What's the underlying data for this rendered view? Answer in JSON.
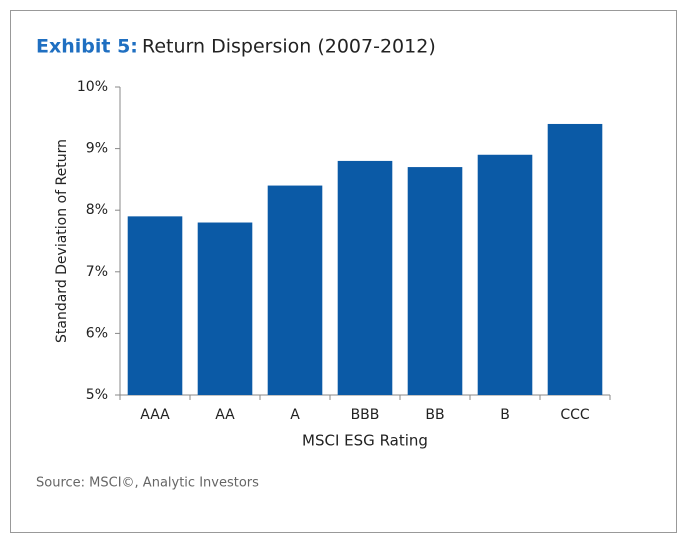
{
  "chart_data": {
    "type": "bar",
    "title_label": "Exhibit 5:",
    "title": "Return Dispersion (2007-2012)",
    "x_label": "MSCI ESG Rating",
    "y_label": "Standard Deviation of Return",
    "source": "Source: MSCI©, Analytic Investors",
    "categories": [
      "AAA",
      "AA",
      "A",
      "BBB",
      "BB",
      "B",
      "CCC"
    ],
    "values": [
      7.9,
      7.8,
      8.4,
      8.8,
      8.7,
      8.9,
      9.4
    ],
    "color": "#0b5aa6",
    "ylim": [
      5,
      10
    ],
    "yticks": [
      {
        "value": 5,
        "label": "5%"
      },
      {
        "value": 6,
        "label": "6%"
      },
      {
        "value": 7,
        "label": "7%"
      },
      {
        "value": 8,
        "label": "8%"
      },
      {
        "value": 9,
        "label": "9%"
      },
      {
        "value": 10,
        "label": "10%"
      }
    ],
    "grid": false
  }
}
